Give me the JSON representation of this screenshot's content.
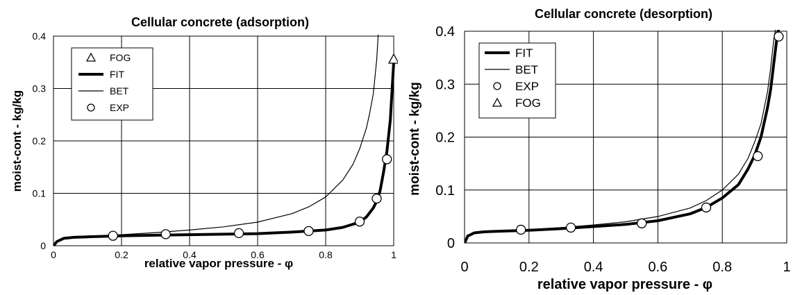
{
  "chart_data": [
    {
      "type": "line",
      "title": "Cellular concrete (adsorption)",
      "xlabel": "relative vapor pressure - φ",
      "ylabel": "moist-cont - kg/kg",
      "xlim": [
        0,
        1
      ],
      "ylim": [
        0,
        0.4
      ],
      "xticks": [
        "0",
        "0.2",
        "0.4",
        "0.6",
        "0.8",
        "1"
      ],
      "yticks": [
        "0",
        "0.1",
        "0.2",
        "0.3",
        "0.4"
      ],
      "grid": true,
      "legend_position": "top-left",
      "legend_order": [
        "FOG",
        "FIT",
        "BET",
        "EXP"
      ],
      "series": [
        {
          "name": "FIT",
          "style": "thick-line",
          "x": [
            0,
            0.01,
            0.03,
            0.06,
            0.1,
            0.2,
            0.3,
            0.4,
            0.5,
            0.6,
            0.7,
            0.8,
            0.85,
            0.9,
            0.92,
            0.94,
            0.95,
            0.96,
            0.97,
            0.98,
            0.99,
            1.0
          ],
          "y": [
            0,
            0.008,
            0.014,
            0.016,
            0.017,
            0.019,
            0.02,
            0.021,
            0.022,
            0.023,
            0.026,
            0.03,
            0.035,
            0.045,
            0.055,
            0.072,
            0.085,
            0.105,
            0.14,
            0.18,
            0.24,
            0.35
          ]
        },
        {
          "name": "BET",
          "style": "thin-line",
          "x": [
            0,
            0.01,
            0.03,
            0.06,
            0.1,
            0.2,
            0.3,
            0.4,
            0.5,
            0.6,
            0.7,
            0.75,
            0.8,
            0.85,
            0.88,
            0.9,
            0.92,
            0.93,
            0.94,
            0.95,
            0.955
          ],
          "y": [
            0,
            0.008,
            0.014,
            0.016,
            0.018,
            0.021,
            0.025,
            0.03,
            0.036,
            0.045,
            0.061,
            0.074,
            0.093,
            0.125,
            0.155,
            0.185,
            0.225,
            0.255,
            0.29,
            0.355,
            0.41
          ]
        },
        {
          "name": "EXP",
          "style": "circle-markers",
          "x": [
            0.175,
            0.33,
            0.545,
            0.75,
            0.9,
            0.95,
            0.98
          ],
          "y": [
            0.019,
            0.022,
            0.024,
            0.028,
            0.046,
            0.09,
            0.165
          ]
        },
        {
          "name": "FOG",
          "style": "triangle-markers",
          "x": [
            1.0
          ],
          "y": [
            0.355
          ]
        }
      ]
    },
    {
      "type": "line",
      "title": "Cellular concrete (desorption)",
      "xlabel": "relative vapor pressure - φ",
      "ylabel": "moist-cont - kg/kg",
      "xlim": [
        0,
        1
      ],
      "ylim": [
        0,
        0.4
      ],
      "xticks": [
        "0",
        "0.2",
        "0.4",
        "0.6",
        "0.8",
        "1"
      ],
      "yticks": [
        "0",
        "0.1",
        "0.2",
        "0.3",
        "0.4"
      ],
      "grid": true,
      "legend_position": "top-left",
      "legend_order": [
        "FIT",
        "BET",
        "EXP",
        "FOG"
      ],
      "series": [
        {
          "name": "FIT",
          "style": "thick-line",
          "x": [
            0,
            0.01,
            0.03,
            0.06,
            0.1,
            0.2,
            0.3,
            0.4,
            0.5,
            0.6,
            0.7,
            0.75,
            0.8,
            0.85,
            0.88,
            0.9,
            0.92,
            0.94,
            0.95,
            0.96,
            0.97,
            0.98
          ],
          "y": [
            0,
            0.013,
            0.019,
            0.021,
            0.022,
            0.024,
            0.027,
            0.031,
            0.035,
            0.042,
            0.055,
            0.067,
            0.085,
            0.11,
            0.14,
            0.165,
            0.2,
            0.255,
            0.29,
            0.34,
            0.39,
            0.42
          ]
        },
        {
          "name": "BET",
          "style": "thin-line",
          "x": [
            0,
            0.01,
            0.03,
            0.06,
            0.1,
            0.2,
            0.3,
            0.4,
            0.5,
            0.6,
            0.7,
            0.75,
            0.8,
            0.85,
            0.88,
            0.9,
            0.92,
            0.94,
            0.95,
            0.96,
            0.97
          ],
          "y": [
            0,
            0.013,
            0.019,
            0.021,
            0.022,
            0.025,
            0.029,
            0.034,
            0.04,
            0.05,
            0.066,
            0.08,
            0.1,
            0.13,
            0.16,
            0.19,
            0.225,
            0.285,
            0.33,
            0.385,
            0.42
          ]
        },
        {
          "name": "EXP",
          "style": "circle-markers",
          "x": [
            0.175,
            0.33,
            0.55,
            0.75,
            0.91,
            0.975
          ],
          "y": [
            0.025,
            0.029,
            0.037,
            0.067,
            0.164,
            0.39
          ]
        },
        {
          "name": "FOG",
          "style": "triangle-markers",
          "x": [],
          "y": []
        }
      ]
    }
  ]
}
